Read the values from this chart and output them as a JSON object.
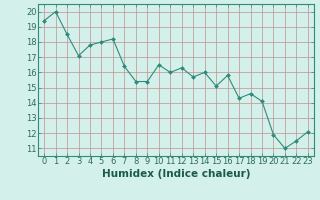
{
  "x": [
    0,
    1,
    2,
    3,
    4,
    5,
    6,
    7,
    8,
    9,
    10,
    11,
    12,
    13,
    14,
    15,
    16,
    17,
    18,
    19,
    20,
    21,
    22,
    23
  ],
  "y": [
    19.4,
    20.0,
    18.5,
    17.1,
    17.8,
    18.0,
    18.2,
    16.4,
    15.4,
    15.4,
    16.5,
    16.0,
    16.3,
    15.7,
    16.0,
    15.1,
    15.8,
    14.3,
    14.6,
    14.1,
    11.9,
    11.0,
    11.5,
    12.1
  ],
  "line_color": "#2e8b7a",
  "marker": "D",
  "marker_size": 2,
  "background_color": "#d4f0eb",
  "grid_color": "#c09090",
  "xlabel": "Humidex (Indice chaleur)",
  "xlim": [
    -0.5,
    23.5
  ],
  "ylim": [
    10.5,
    20.5
  ],
  "yticks": [
    11,
    12,
    13,
    14,
    15,
    16,
    17,
    18,
    19,
    20
  ],
  "xticks": [
    0,
    1,
    2,
    3,
    4,
    5,
    6,
    7,
    8,
    9,
    10,
    11,
    12,
    13,
    14,
    15,
    16,
    17,
    18,
    19,
    20,
    21,
    22,
    23
  ],
  "tick_label_fontsize": 6,
  "xlabel_fontsize": 7.5
}
